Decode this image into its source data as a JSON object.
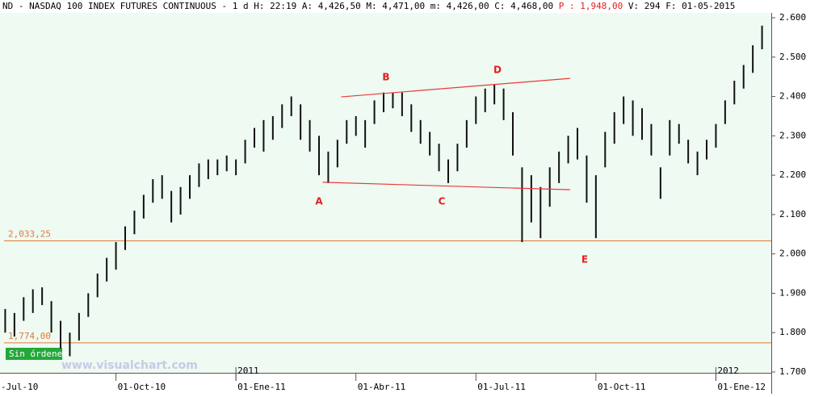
{
  "header": {
    "prefix": "ND - NASDAQ 100 INDEX FUTURES CONTINUOUS -   1 d H: 22:19 A: 4,426,50 M: 4,471,00 m: 4,426,00 C: 4,468,00",
    "p": "P : 1,948,00",
    "suffix": "V: 294 F: 01-05-2015"
  },
  "badge": "Sin órdenes",
  "watermark": "www.visualchart.com",
  "chart_data": {
    "type": "hilo",
    "color": "#111111",
    "x": [
      1,
      2,
      3,
      4,
      5,
      6,
      7,
      8,
      9,
      10,
      11,
      12,
      13,
      14,
      15,
      16,
      17,
      18,
      19,
      20,
      21,
      22,
      23,
      24,
      25,
      26,
      27,
      28,
      29,
      30,
      31,
      32,
      33,
      34,
      35,
      36,
      37,
      38,
      39,
      40,
      41,
      42,
      43,
      44,
      45,
      46,
      47,
      48,
      49,
      50,
      51,
      52,
      53,
      54,
      55,
      56,
      57,
      58,
      59,
      60,
      61,
      62,
      63,
      64,
      65,
      66,
      67,
      68,
      69,
      70,
      71,
      72,
      73,
      74,
      75,
      76,
      77,
      78,
      79,
      80,
      81,
      82,
      83
    ],
    "low": [
      1800,
      1790,
      1830,
      1850,
      1870,
      1800,
      1760,
      1740,
      1780,
      1840,
      1890,
      1930,
      1960,
      2010,
      2050,
      2090,
      2130,
      2140,
      2080,
      2100,
      2140,
      2170,
      2190,
      2200,
      2210,
      2200,
      2230,
      2270,
      2260,
      2290,
      2320,
      2350,
      2290,
      2260,
      2200,
      2180,
      2220,
      2280,
      2300,
      2270,
      2330,
      2360,
      2370,
      2350,
      2310,
      2280,
      2250,
      2210,
      2180,
      2210,
      2270,
      2330,
      2360,
      2380,
      2340,
      2250,
      2030,
      2080,
      2040,
      2120,
      2180,
      2230,
      2240,
      2130,
      2040,
      2220,
      2280,
      2330,
      2300,
      2290,
      2250,
      2140,
      2250,
      2280,
      2230,
      2200,
      2240,
      2270,
      2330,
      2380,
      2420,
      2460,
      2520
    ],
    "high": [
      1860,
      1850,
      1890,
      1910,
      1915,
      1880,
      1830,
      1800,
      1850,
      1900,
      1950,
      1990,
      2030,
      2070,
      2110,
      2150,
      2190,
      2200,
      2160,
      2170,
      2200,
      2230,
      2240,
      2240,
      2250,
      2240,
      2290,
      2320,
      2340,
      2350,
      2380,
      2400,
      2380,
      2340,
      2300,
      2260,
      2290,
      2340,
      2350,
      2340,
      2390,
      2410,
      2410,
      2410,
      2380,
      2340,
      2310,
      2280,
      2240,
      2280,
      2340,
      2400,
      2420,
      2430,
      2420,
      2360,
      2220,
      2200,
      2170,
      2220,
      2260,
      2300,
      2320,
      2250,
      2200,
      2310,
      2360,
      2400,
      2390,
      2370,
      2330,
      2220,
      2340,
      2330,
      2290,
      2260,
      2290,
      2330,
      2390,
      2440,
      2480,
      2530,
      2580
    ],
    "xlim": [
      0,
      84
    ],
    "xticks": [
      {
        "value": 0,
        "label": "-Jul-10"
      },
      {
        "value": 13,
        "label": "01-Oct-10"
      },
      {
        "value": 26,
        "label": "01-Ene-11"
      },
      {
        "value": 39,
        "label": "01-Abr-11"
      },
      {
        "value": 52,
        "label": "01-Jul-11"
      },
      {
        "value": 65,
        "label": "01-Oct-11"
      },
      {
        "value": 78,
        "label": "01-Ene-12"
      }
    ],
    "year_marks": [
      {
        "value": 26,
        "label": "2011"
      },
      {
        "value": 78,
        "label": "2012"
      }
    ],
    "ylim": [
      1700,
      2600
    ],
    "yticks": [
      {
        "value": 1700,
        "label": "1.700"
      },
      {
        "value": 1800,
        "label": "1.800"
      },
      {
        "value": 1900,
        "label": "1.900"
      },
      {
        "value": 2000,
        "label": "2.000"
      },
      {
        "value": 2100,
        "label": "2.100"
      },
      {
        "value": 2200,
        "label": "2.200"
      },
      {
        "value": 2300,
        "label": "2.300"
      },
      {
        "value": 2400,
        "label": "2.400"
      },
      {
        "value": 2500,
        "label": "2.500"
      },
      {
        "value": 2600,
        "label": "2.600"
      }
    ],
    "levels": [
      {
        "value": 2033.25,
        "label": "2,033,25",
        "color": "#e07a3a"
      },
      {
        "value": 1774,
        "label": "1,774,00",
        "color": "#e07a3a"
      }
    ],
    "trendlines": [
      {
        "color": "#e83a3a",
        "x": [
          37.4,
          62.2
        ],
        "values": [
          2399,
          2446
        ]
      },
      {
        "color": "#e83a3a",
        "x": [
          35.4,
          62.2
        ],
        "values": [
          2182,
          2163
        ]
      }
    ],
    "annotations": [
      "A",
      "B",
      "C",
      "D",
      "E"
    ]
  }
}
